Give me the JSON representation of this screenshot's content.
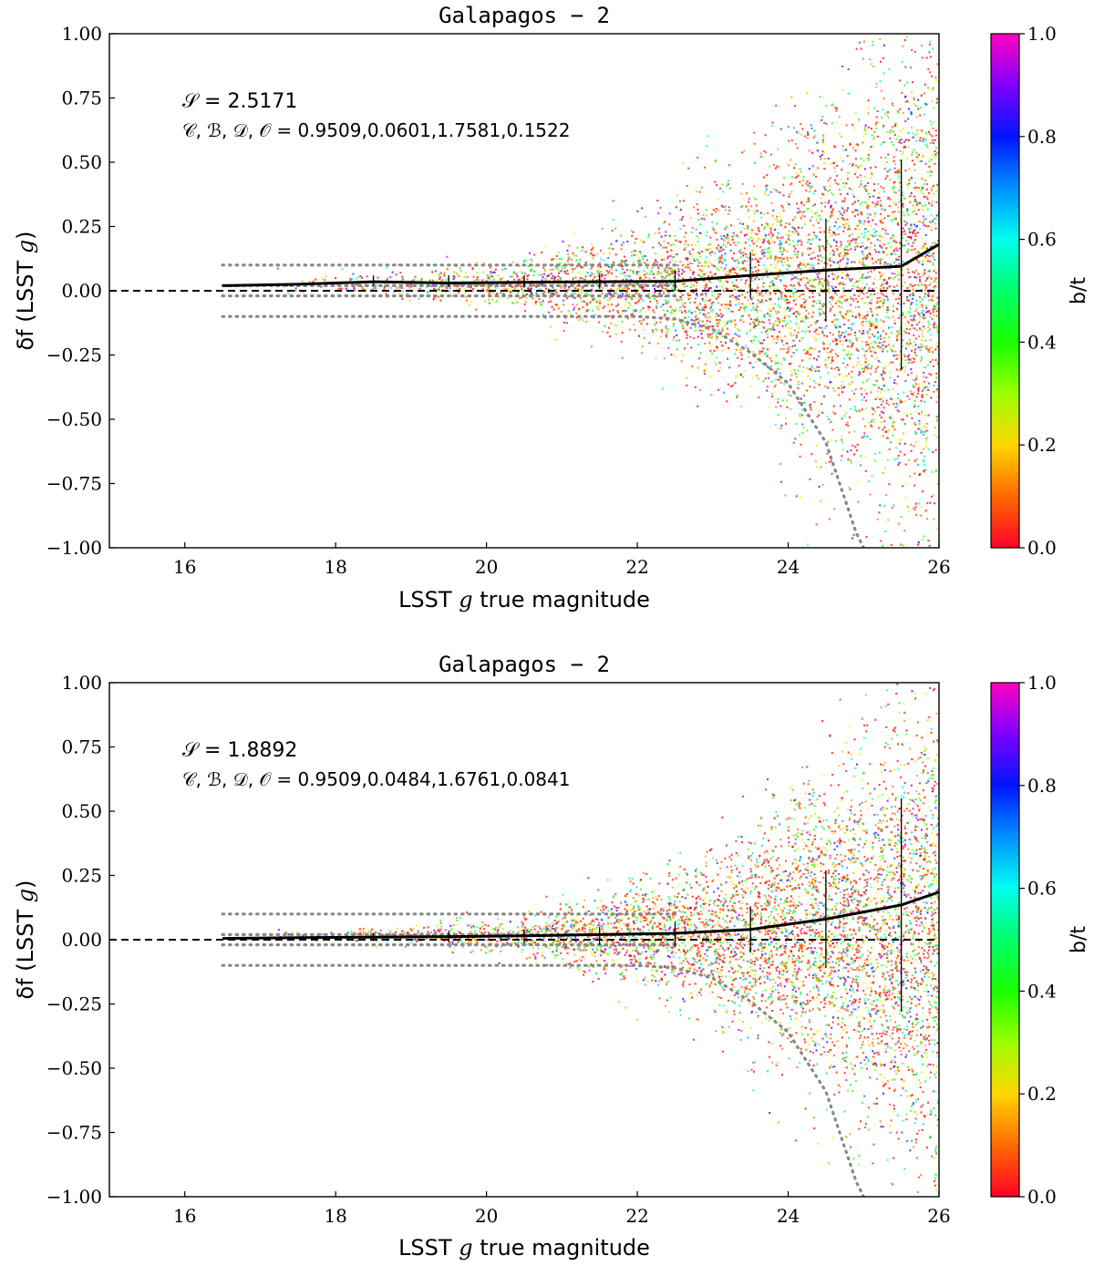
{
  "colors": {
    "median_line": "#000000",
    "reference_line": "#000000",
    "envelope": "#888888",
    "axis": "#000000"
  },
  "chart_data": [
    {
      "type": "scatter",
      "title": "Galapagos − 2",
      "xlabel_pre": "LSST ",
      "xlabel_var": "g",
      "xlabel_post": " true magnitude",
      "ylabel_pre": "δf (LSST ",
      "ylabel_var": "g",
      "ylabel_post": ")",
      "xlim": [
        15,
        26
      ],
      "ylim": [
        -1.0,
        1.0
      ],
      "x_ticks": [
        16,
        18,
        20,
        22,
        24,
        26
      ],
      "x_tick_labels": [
        "16",
        "18",
        "20",
        "22",
        "24",
        "26"
      ],
      "y_ticks": [
        -1.0,
        -0.75,
        -0.5,
        -0.25,
        0.0,
        0.25,
        0.5,
        0.75,
        1.0
      ],
      "y_tick_labels": [
        "−1.00",
        "−0.75",
        "−0.50",
        "−0.25",
        "0.00",
        "0.25",
        "0.50",
        "0.75",
        "1.00"
      ],
      "annotation_line1": "𝒮 = 2.5171",
      "annotation_line2": "𝒞, ℬ, 𝒟, 𝒪 = 0.9509,0.0601,1.7581,0.1522",
      "colorbar": {
        "label": "b/t",
        "range": [
          0.0,
          1.0
        ],
        "ticks": [
          0.0,
          0.2,
          0.4,
          0.6,
          0.8,
          1.0
        ],
        "tick_labels": [
          "0.0",
          "0.2",
          "0.4",
          "0.6",
          "0.8",
          "1.0"
        ],
        "colormap": "gist_rainbow"
      },
      "median": {
        "x": [
          16.5,
          17.5,
          18.5,
          19.5,
          20.5,
          21.5,
          22.5,
          23.5,
          24.5,
          25.5,
          26.0
        ],
        "y": [
          0.02,
          0.025,
          0.035,
          0.03,
          0.033,
          0.035,
          0.037,
          0.06,
          0.08,
          0.095,
          0.18
        ]
      },
      "error_bars": {
        "x": [
          18.5,
          19.5,
          20.5,
          21.5,
          22.5,
          23.5,
          24.5,
          25.5
        ],
        "lower": [
          0.02,
          0.015,
          0.012,
          0.008,
          0.0,
          -0.03,
          -0.12,
          -0.31
        ],
        "upper": [
          0.06,
          0.06,
          0.06,
          0.065,
          0.08,
          0.15,
          0.28,
          0.51
        ]
      },
      "envelope_outer_upper": {
        "x": [
          16.5,
          22.5
        ],
        "y": [
          0.1,
          0.1
        ]
      },
      "envelope_inner_upper": {
        "x": [
          16.5,
          22.5
        ],
        "y": [
          0.02,
          0.02
        ]
      },
      "envelope_inner_lower": {
        "x": [
          16.5,
          22.5
        ],
        "y": [
          -0.02,
          -0.02
        ]
      },
      "envelope_outer_lower": {
        "x": [
          16.5,
          22.0,
          22.5,
          23.0,
          23.5,
          24.0,
          24.5,
          24.9,
          25.0
        ],
        "y": [
          -0.1,
          -0.1,
          -0.11,
          -0.15,
          -0.24,
          -0.36,
          -0.59,
          -0.94,
          -1.0
        ]
      },
      "scatter_spread": {
        "note": "dense galaxy point cloud, spread grows with magnitude",
        "mag_min": 16.5,
        "mag_max": 26.0,
        "sigma_bright": 0.02,
        "sigma_faint": 0.55,
        "median_offset": 0.03
      }
    },
    {
      "type": "scatter",
      "title": "Galapagos − 2",
      "xlabel_pre": "LSST ",
      "xlabel_var": "g",
      "xlabel_post": " true magnitude",
      "ylabel_pre": "δf (LSST ",
      "ylabel_var": "g",
      "ylabel_post": ")",
      "xlim": [
        15,
        26
      ],
      "ylim": [
        -1.0,
        1.0
      ],
      "x_ticks": [
        16,
        18,
        20,
        22,
        24,
        26
      ],
      "x_tick_labels": [
        "16",
        "18",
        "20",
        "22",
        "24",
        "26"
      ],
      "y_ticks": [
        -1.0,
        -0.75,
        -0.5,
        -0.25,
        0.0,
        0.25,
        0.5,
        0.75,
        1.0
      ],
      "y_tick_labels": [
        "−1.00",
        "−0.75",
        "−0.50",
        "−0.25",
        "0.00",
        "0.25",
        "0.50",
        "0.75",
        "1.00"
      ],
      "annotation_line1": "𝒮 = 1.8892",
      "annotation_line2": "𝒞, ℬ, 𝒟, 𝒪 = 0.9509,0.0484,1.6761,0.0841",
      "colorbar": {
        "label": "b/t",
        "range": [
          0.0,
          1.0
        ],
        "ticks": [
          0.0,
          0.2,
          0.4,
          0.6,
          0.8,
          1.0
        ],
        "tick_labels": [
          "0.0",
          "0.2",
          "0.4",
          "0.6",
          "0.8",
          "1.0"
        ],
        "colormap": "gist_rainbow"
      },
      "median": {
        "x": [
          16.5,
          17.5,
          18.5,
          19.5,
          20.5,
          21.5,
          22.5,
          23.5,
          24.5,
          25.5,
          26.0
        ],
        "y": [
          0.005,
          0.008,
          0.01,
          0.012,
          0.015,
          0.02,
          0.025,
          0.04,
          0.08,
          0.135,
          0.185
        ]
      },
      "error_bars": {
        "x": [
          18.5,
          19.5,
          20.5,
          21.5,
          22.5,
          23.5,
          24.5,
          25.5
        ],
        "lower": [
          -0.005,
          -0.01,
          -0.015,
          -0.02,
          -0.03,
          -0.05,
          -0.11,
          -0.28
        ],
        "upper": [
          0.025,
          0.035,
          0.04,
          0.05,
          0.07,
          0.13,
          0.27,
          0.55
        ]
      },
      "envelope_outer_upper": {
        "x": [
          16.5,
          22.5
        ],
        "y": [
          0.1,
          0.1
        ]
      },
      "envelope_inner_upper": {
        "x": [
          16.5,
          22.5
        ],
        "y": [
          0.02,
          0.02
        ]
      },
      "envelope_inner_lower": {
        "x": [
          16.5,
          22.5
        ],
        "y": [
          -0.02,
          -0.02
        ]
      },
      "envelope_outer_lower": {
        "x": [
          16.5,
          22.0,
          22.5,
          23.0,
          23.5,
          24.0,
          24.5,
          24.9,
          25.0
        ],
        "y": [
          -0.1,
          -0.1,
          -0.11,
          -0.15,
          -0.24,
          -0.36,
          -0.59,
          -0.94,
          -1.0
        ]
      },
      "scatter_spread": {
        "note": "dense galaxy point cloud, spread grows with magnitude",
        "mag_min": 16.5,
        "mag_max": 26.0,
        "sigma_bright": 0.01,
        "sigma_faint": 0.5,
        "median_offset": 0.02
      }
    }
  ]
}
